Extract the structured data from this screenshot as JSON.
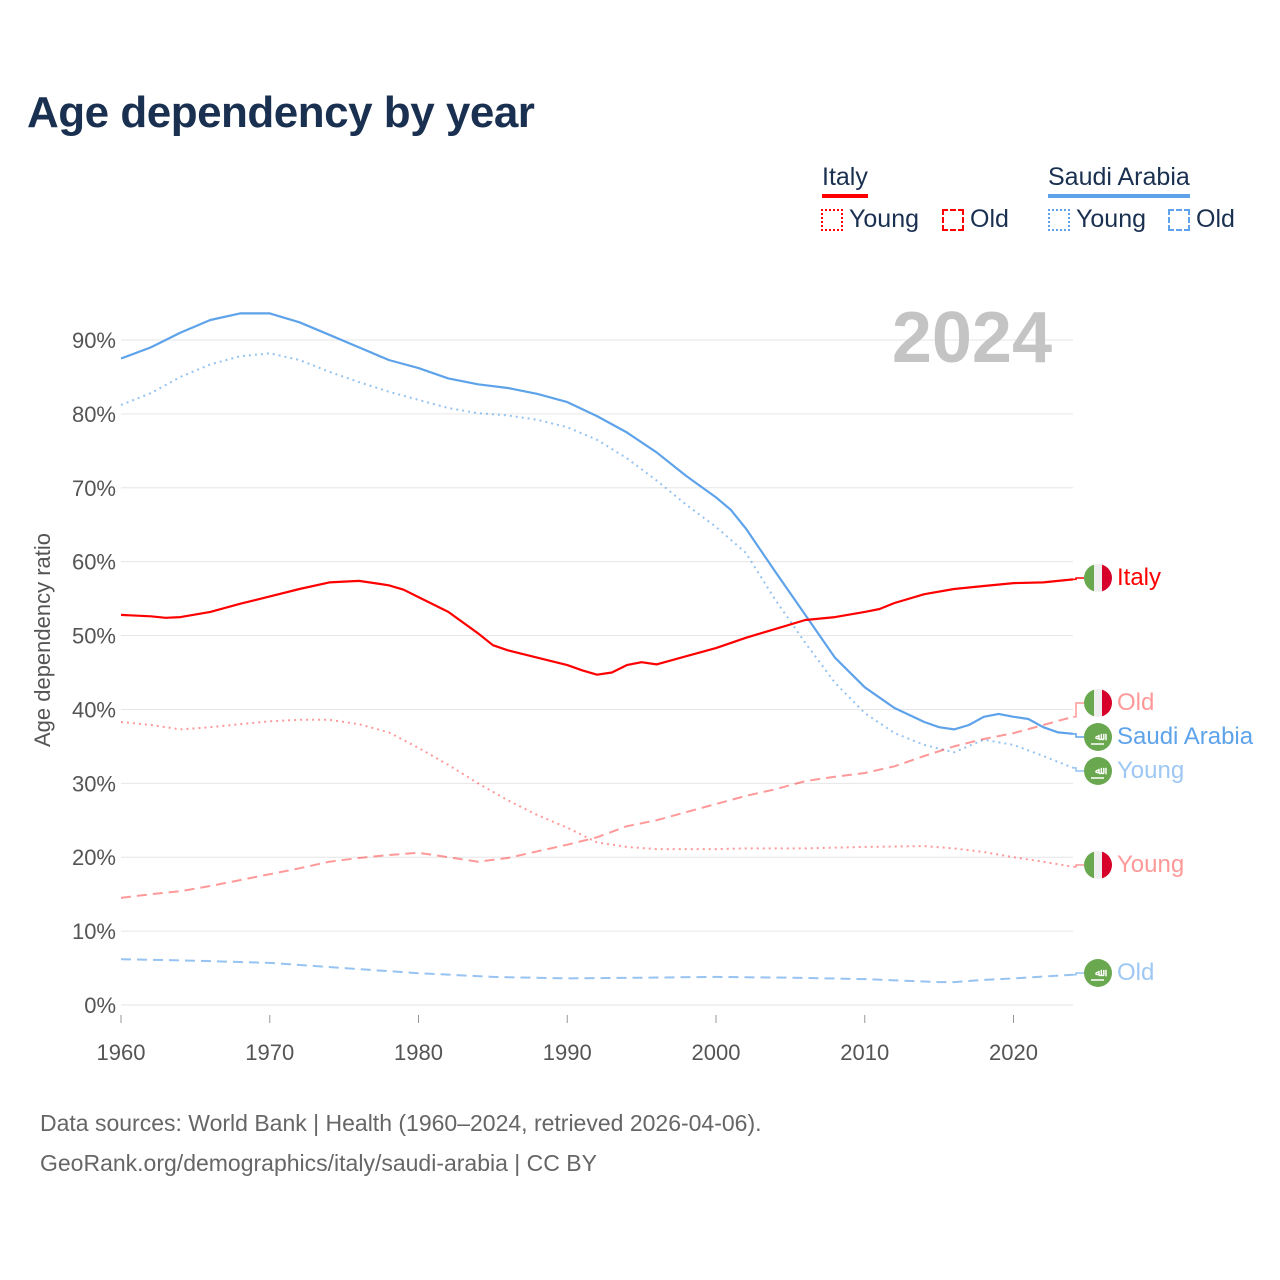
{
  "title": "Age dependency by year",
  "year_watermark": "2024",
  "legend": {
    "groups": [
      {
        "country": "Italy",
        "color": "#ff0000",
        "items": [
          "Young",
          "Old"
        ]
      },
      {
        "country": "Saudi Arabia",
        "color": "#5ea3ea",
        "items": [
          "Young",
          "Old"
        ]
      }
    ]
  },
  "end_labels": {
    "italy_total": "Italy",
    "italy_old": "Old",
    "saudi_total": "Saudi Arabia",
    "saudi_young": "Young",
    "italy_young": "Young",
    "saudi_old": "Old"
  },
  "flags": {
    "italy": "italy-flag-icon",
    "saudi": "saudi-arabia-flag-icon"
  },
  "source_line1": "Data sources: World Bank | Health (1960–2024, retrieved 2026-04-06).",
  "source_line2": "GeoRank.org/demographics/italy/saudi-arabia | CC BY",
  "chart_data": {
    "type": "line",
    "title": "Age dependency by year",
    "xlabel": "",
    "ylabel": "Age dependency ratio",
    "xlim": [
      1960,
      2024
    ],
    "ylim": [
      0,
      90
    ],
    "xticks": [
      1960,
      1970,
      1980,
      1990,
      2000,
      2010,
      2020
    ],
    "yticks": [
      0,
      10,
      20,
      30,
      40,
      50,
      60,
      70,
      80,
      90
    ],
    "ytick_labels": [
      "0%",
      "10%",
      "20%",
      "30%",
      "40%",
      "50%",
      "60%",
      "70%",
      "80%",
      "90%"
    ],
    "grid": true,
    "series": [
      {
        "name": "Saudi Arabia",
        "color": "#5ea3ea",
        "style": "solid",
        "opacity": 1,
        "points": [
          [
            1960,
            87.5
          ],
          [
            1962,
            89
          ],
          [
            1964,
            91
          ],
          [
            1966,
            92.7
          ],
          [
            1968,
            93.6
          ],
          [
            1970,
            93.6
          ],
          [
            1972,
            92.4
          ],
          [
            1974,
            90.7
          ],
          [
            1976,
            89
          ],
          [
            1978,
            87.3
          ],
          [
            1980,
            86.2
          ],
          [
            1982,
            84.8
          ],
          [
            1984,
            84
          ],
          [
            1986,
            83.5
          ],
          [
            1988,
            82.7
          ],
          [
            1990,
            81.6
          ],
          [
            1992,
            79.7
          ],
          [
            1994,
            77.5
          ],
          [
            1996,
            74.8
          ],
          [
            1998,
            71.6
          ],
          [
            2000,
            68.7
          ],
          [
            2001,
            67
          ],
          [
            2002,
            64.5
          ],
          [
            2004,
            58.6
          ],
          [
            2006,
            52.8
          ],
          [
            2008,
            47
          ],
          [
            2010,
            43
          ],
          [
            2012,
            40.2
          ],
          [
            2014,
            38.3
          ],
          [
            2015,
            37.6
          ],
          [
            2016,
            37.3
          ],
          [
            2017,
            37.9
          ],
          [
            2018,
            39
          ],
          [
            2019,
            39.4
          ],
          [
            2020,
            39
          ],
          [
            2021,
            38.7
          ],
          [
            2022,
            37.6
          ],
          [
            2023,
            36.9
          ],
          [
            2024,
            36.7
          ]
        ]
      },
      {
        "name": "Saudi Arabia Young",
        "color": "#5ea3ea",
        "style": "dotted",
        "opacity": 0.65,
        "points": [
          [
            1960,
            81.2
          ],
          [
            1962,
            82.8
          ],
          [
            1964,
            85
          ],
          [
            1966,
            86.7
          ],
          [
            1968,
            87.8
          ],
          [
            1970,
            88.2
          ],
          [
            1972,
            87.3
          ],
          [
            1974,
            85.7
          ],
          [
            1976,
            84.3
          ],
          [
            1978,
            83
          ],
          [
            1980,
            81.9
          ],
          [
            1982,
            80.8
          ],
          [
            1984,
            80.1
          ],
          [
            1986,
            79.8
          ],
          [
            1988,
            79.2
          ],
          [
            1990,
            78.2
          ],
          [
            1992,
            76.5
          ],
          [
            1994,
            74
          ],
          [
            1996,
            71
          ],
          [
            1998,
            67.7
          ],
          [
            2000,
            64.7
          ],
          [
            2002,
            61.2
          ],
          [
            2004,
            54.8
          ],
          [
            2006,
            49
          ],
          [
            2008,
            43.6
          ],
          [
            2010,
            39.5
          ],
          [
            2012,
            36.8
          ],
          [
            2014,
            35.2
          ],
          [
            2016,
            34.2
          ],
          [
            2018,
            35.9
          ],
          [
            2020,
            35.2
          ],
          [
            2022,
            33.7
          ],
          [
            2024,
            32.1
          ]
        ]
      },
      {
        "name": "Saudi Arabia Old",
        "color": "#5ea3ea",
        "style": "dashed",
        "opacity": 0.65,
        "points": [
          [
            1960,
            6.2
          ],
          [
            1965,
            6
          ],
          [
            1970,
            5.7
          ],
          [
            1975,
            5
          ],
          [
            1980,
            4.3
          ],
          [
            1985,
            3.8
          ],
          [
            1990,
            3.6
          ],
          [
            1995,
            3.7
          ],
          [
            2000,
            3.8
          ],
          [
            2005,
            3.7
          ],
          [
            2010,
            3.5
          ],
          [
            2015,
            3.1
          ],
          [
            2016,
            3.1
          ],
          [
            2018,
            3.4
          ],
          [
            2020,
            3.6
          ],
          [
            2024,
            4.1
          ]
        ]
      },
      {
        "name": "Italy",
        "color": "#ff0000",
        "style": "solid",
        "opacity": 1,
        "points": [
          [
            1960,
            52.8
          ],
          [
            1962,
            52.6
          ],
          [
            1963,
            52.4
          ],
          [
            1964,
            52.5
          ],
          [
            1966,
            53.2
          ],
          [
            1968,
            54.3
          ],
          [
            1970,
            55.3
          ],
          [
            1972,
            56.3
          ],
          [
            1974,
            57.2
          ],
          [
            1976,
            57.4
          ],
          [
            1978,
            56.8
          ],
          [
            1979,
            56.2
          ],
          [
            1980,
            55.2
          ],
          [
            1982,
            53.2
          ],
          [
            1984,
            50.3
          ],
          [
            1985,
            48.7
          ],
          [
            1986,
            48
          ],
          [
            1988,
            47
          ],
          [
            1990,
            46
          ],
          [
            1991,
            45.3
          ],
          [
            1992,
            44.7
          ],
          [
            1993,
            45
          ],
          [
            1994,
            46
          ],
          [
            1995,
            46.4
          ],
          [
            1996,
            46.1
          ],
          [
            1998,
            47.2
          ],
          [
            2000,
            48.3
          ],
          [
            2002,
            49.7
          ],
          [
            2004,
            50.9
          ],
          [
            2006,
            52.1
          ],
          [
            2008,
            52.5
          ],
          [
            2010,
            53.2
          ],
          [
            2011,
            53.6
          ],
          [
            2012,
            54.4
          ],
          [
            2014,
            55.6
          ],
          [
            2016,
            56.3
          ],
          [
            2018,
            56.7
          ],
          [
            2020,
            57.1
          ],
          [
            2022,
            57.2
          ],
          [
            2023,
            57.4
          ],
          [
            2024,
            57.6
          ]
        ]
      },
      {
        "name": "Italy Young",
        "color": "#ff0000",
        "style": "dotted",
        "opacity": 0.4,
        "points": [
          [
            1960,
            38.3
          ],
          [
            1962,
            37.9
          ],
          [
            1964,
            37.3
          ],
          [
            1966,
            37.6
          ],
          [
            1968,
            38
          ],
          [
            1970,
            38.4
          ],
          [
            1972,
            38.6
          ],
          [
            1974,
            38.6
          ],
          [
            1976,
            38
          ],
          [
            1978,
            36.9
          ],
          [
            1980,
            34.8
          ],
          [
            1982,
            32.5
          ],
          [
            1984,
            30
          ],
          [
            1986,
            27.7
          ],
          [
            1988,
            25.7
          ],
          [
            1990,
            24
          ],
          [
            1992,
            22
          ],
          [
            1994,
            21.4
          ],
          [
            1996,
            21.1
          ],
          [
            2000,
            21.1
          ],
          [
            2002,
            21.2
          ],
          [
            2006,
            21.2
          ],
          [
            2010,
            21.4
          ],
          [
            2014,
            21.5
          ],
          [
            2016,
            21.2
          ],
          [
            2018,
            20.7
          ],
          [
            2020,
            20
          ],
          [
            2022,
            19.4
          ],
          [
            2024,
            18.7
          ]
        ]
      },
      {
        "name": "Italy Old",
        "color": "#ff0000",
        "style": "dashed",
        "opacity": 0.4,
        "points": [
          [
            1960,
            14.5
          ],
          [
            1962,
            15
          ],
          [
            1964,
            15.4
          ],
          [
            1966,
            16.1
          ],
          [
            1968,
            16.9
          ],
          [
            1970,
            17.7
          ],
          [
            1972,
            18.5
          ],
          [
            1974,
            19.4
          ],
          [
            1976,
            19.9
          ],
          [
            1978,
            20.3
          ],
          [
            1980,
            20.6
          ],
          [
            1982,
            20
          ],
          [
            1984,
            19.4
          ],
          [
            1986,
            19.9
          ],
          [
            1988,
            20.8
          ],
          [
            1990,
            21.7
          ],
          [
            1992,
            22.7
          ],
          [
            1994,
            24.2
          ],
          [
            1996,
            25
          ],
          [
            1998,
            26.1
          ],
          [
            2000,
            27.2
          ],
          [
            2002,
            28.3
          ],
          [
            2004,
            29.2
          ],
          [
            2006,
            30.3
          ],
          [
            2008,
            30.9
          ],
          [
            2010,
            31.4
          ],
          [
            2012,
            32.3
          ],
          [
            2014,
            33.7
          ],
          [
            2016,
            35
          ],
          [
            2018,
            36
          ],
          [
            2020,
            36.8
          ],
          [
            2022,
            37.9
          ],
          [
            2024,
            39
          ]
        ]
      }
    ]
  }
}
